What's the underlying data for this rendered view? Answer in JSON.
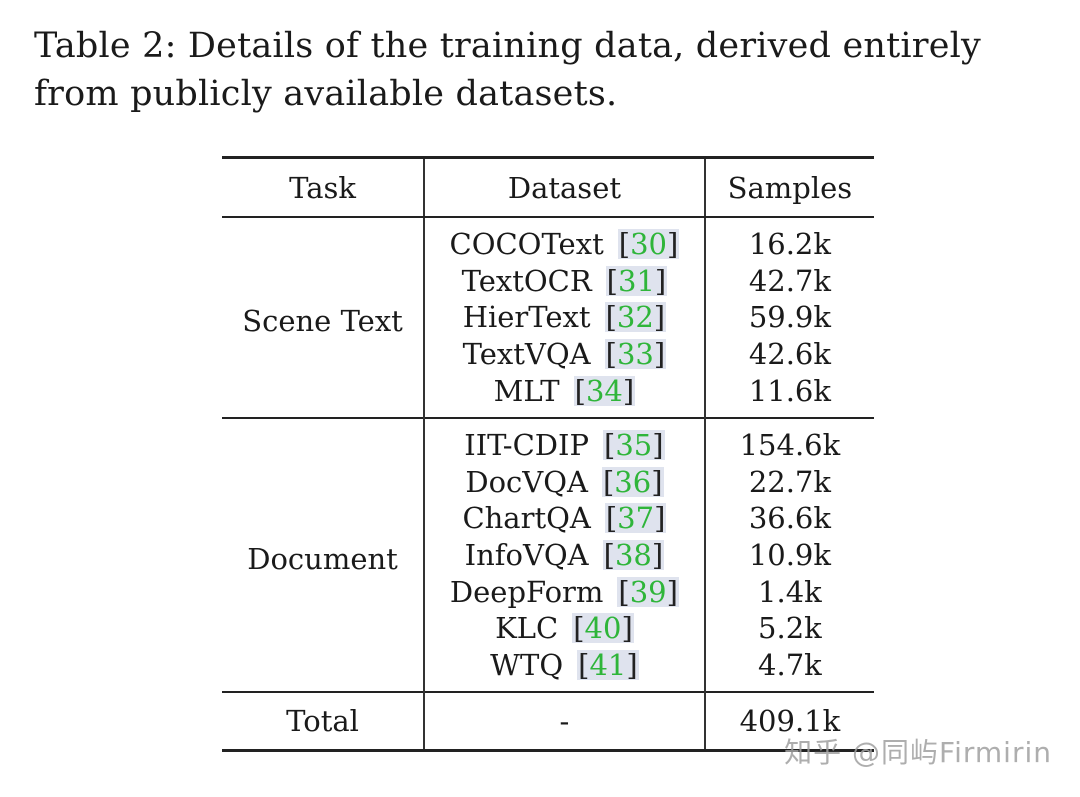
{
  "caption": "Table 2: Details of the training data, derived entirely from publicly available datasets.",
  "table": {
    "headers": {
      "task": "Task",
      "dataset": "Dataset",
      "samples": "Samples"
    },
    "groups": [
      {
        "task": "Scene Text",
        "rows": [
          {
            "dataset": "COCOText",
            "ref": "30",
            "samples": "16.2k"
          },
          {
            "dataset": "TextOCR",
            "ref": "31",
            "samples": "42.7k"
          },
          {
            "dataset": "HierText",
            "ref": "32",
            "samples": "59.9k"
          },
          {
            "dataset": "TextVQA",
            "ref": "33",
            "samples": "42.6k"
          },
          {
            "dataset": "MLT",
            "ref": "34",
            "samples": "11.6k"
          }
        ]
      },
      {
        "task": "Document",
        "rows": [
          {
            "dataset": "IIT-CDIP",
            "ref": "35",
            "samples": "154.6k"
          },
          {
            "dataset": "DocVQA",
            "ref": "36",
            "samples": "22.7k"
          },
          {
            "dataset": "ChartQA",
            "ref": "37",
            "samples": "36.6k"
          },
          {
            "dataset": "InfoVQA",
            "ref": "38",
            "samples": "10.9k"
          },
          {
            "dataset": "DeepForm",
            "ref": "39",
            "samples": "1.4k"
          },
          {
            "dataset": "KLC",
            "ref": "40",
            "samples": "5.2k"
          },
          {
            "dataset": "WTQ",
            "ref": "41",
            "samples": "4.7k"
          }
        ]
      }
    ],
    "total": {
      "label": "Total",
      "dataset": "-",
      "samples": "409.1k"
    }
  },
  "watermark": "知乎 @同屿Firmirin",
  "colors": {
    "ref_number": "#2fb53a",
    "ref_highlight": "#dfe3ee"
  }
}
